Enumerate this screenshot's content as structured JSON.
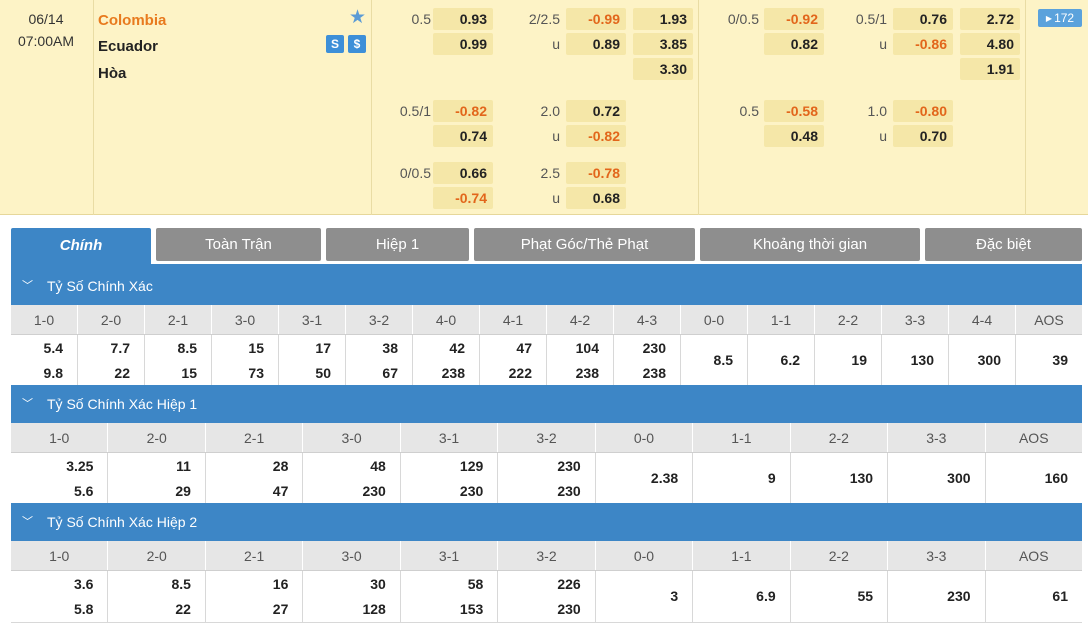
{
  "match": {
    "date": "06/14",
    "time": "07:00AM",
    "home": "Colombia",
    "away": "Ecuador",
    "draw": "Hòa",
    "icon_names": [
      "star-icon",
      "stats-icon",
      "dollar-icon"
    ],
    "stats_glyph": "S",
    "dollar_glyph": "$",
    "more_count": "172",
    "colors": {
      "strip_bg": "#fdf3c6",
      "odd_bg": "#f5e7a8",
      "negative": "#e2661b",
      "accent": "#3d86c6"
    }
  },
  "odds": {
    "g1": {
      "ft_hdp_line": "0.5",
      "ft_hdp_home": "0.93",
      "ft_hdp_away": "0.99",
      "ft_ou_line": "2/2.5",
      "ft_ou_over": "-0.99",
      "ft_ou_under_label": "u",
      "ft_ou_under": "0.89",
      "ft_1x2_home": "1.93",
      "ft_1x2_away": "3.85",
      "ft_1x2_draw": "3.30",
      "h1_hdp_line": "0/0.5",
      "h1_hdp_home": "-0.92",
      "h1_hdp_away": "0.82",
      "h1_ou_line": "0.5/1",
      "h1_ou_over": "0.76",
      "h1_ou_under_label": "u",
      "h1_ou_under": "-0.86",
      "h1_1x2_home": "2.72",
      "h1_1x2_away": "4.80",
      "h1_1x2_draw": "1.91"
    },
    "g2": {
      "ft_hdp_line": "0.5/1",
      "ft_hdp_home": "-0.82",
      "ft_hdp_away": "0.74",
      "ft_ou_line": "2.0",
      "ft_ou_over": "0.72",
      "ft_ou_under_label": "u",
      "ft_ou_under": "-0.82",
      "h1_hdp_line": "0.5",
      "h1_hdp_home": "-0.58",
      "h1_hdp_away": "0.48",
      "h1_ou_line": "1.0",
      "h1_ou_over": "-0.80",
      "h1_ou_under_label": "u",
      "h1_ou_under": "0.70"
    },
    "g3": {
      "ft_hdp_line": "0/0.5",
      "ft_hdp_home": "0.66",
      "ft_hdp_away": "-0.74",
      "ft_ou_line": "2.5",
      "ft_ou_over": "-0.78",
      "ft_ou_under_label": "u",
      "ft_ou_under": "0.68"
    }
  },
  "tabs": [
    "Chính",
    "Toàn Trận",
    "Hiệp 1",
    "Phạt Góc/Thẻ Phạt",
    "Khoảng thời gian",
    "Đặc biệt"
  ],
  "sections": [
    {
      "title": "Tỷ Số Chính Xác",
      "headers": [
        "1-0",
        "2-0",
        "2-1",
        "3-0",
        "3-1",
        "3-2",
        "4-0",
        "4-1",
        "4-2",
        "4-3",
        "0-0",
        "1-1",
        "2-2",
        "3-3",
        "4-4",
        "AOS"
      ],
      "values": [
        [
          "5.4",
          "9.8"
        ],
        [
          "7.7",
          "22"
        ],
        [
          "8.5",
          "15"
        ],
        [
          "15",
          "73"
        ],
        [
          "17",
          "50"
        ],
        [
          "38",
          "67"
        ],
        [
          "42",
          "238"
        ],
        [
          "47",
          "222"
        ],
        [
          "104",
          "238"
        ],
        [
          "230",
          "238"
        ],
        [
          "8.5"
        ],
        [
          "6.2"
        ],
        [
          "19"
        ],
        [
          "130"
        ],
        [
          "300"
        ],
        [
          "39"
        ]
      ]
    },
    {
      "title": "Tỷ Số Chính Xác Hiệp 1",
      "headers": [
        "1-0",
        "2-0",
        "2-1",
        "3-0",
        "3-1",
        "3-2",
        "0-0",
        "1-1",
        "2-2",
        "3-3",
        "AOS"
      ],
      "values": [
        [
          "3.25",
          "5.6"
        ],
        [
          "11",
          "29"
        ],
        [
          "28",
          "47"
        ],
        [
          "48",
          "230"
        ],
        [
          "129",
          "230"
        ],
        [
          "230",
          "230"
        ],
        [
          "2.38"
        ],
        [
          "9"
        ],
        [
          "130"
        ],
        [
          "300"
        ],
        [
          "160"
        ]
      ]
    },
    {
      "title": "Tỷ Số Chính Xác Hiệp 2",
      "headers": [
        "1-0",
        "2-0",
        "2-1",
        "3-0",
        "3-1",
        "3-2",
        "0-0",
        "1-1",
        "2-2",
        "3-3",
        "AOS"
      ],
      "values": [
        [
          "3.6",
          "5.8"
        ],
        [
          "8.5",
          "22"
        ],
        [
          "16",
          "27"
        ],
        [
          "30",
          "128"
        ],
        [
          "58",
          "153"
        ],
        [
          "226",
          "230"
        ],
        [
          "3"
        ],
        [
          "6.9"
        ],
        [
          "55"
        ],
        [
          "230"
        ],
        [
          "61"
        ]
      ]
    }
  ]
}
